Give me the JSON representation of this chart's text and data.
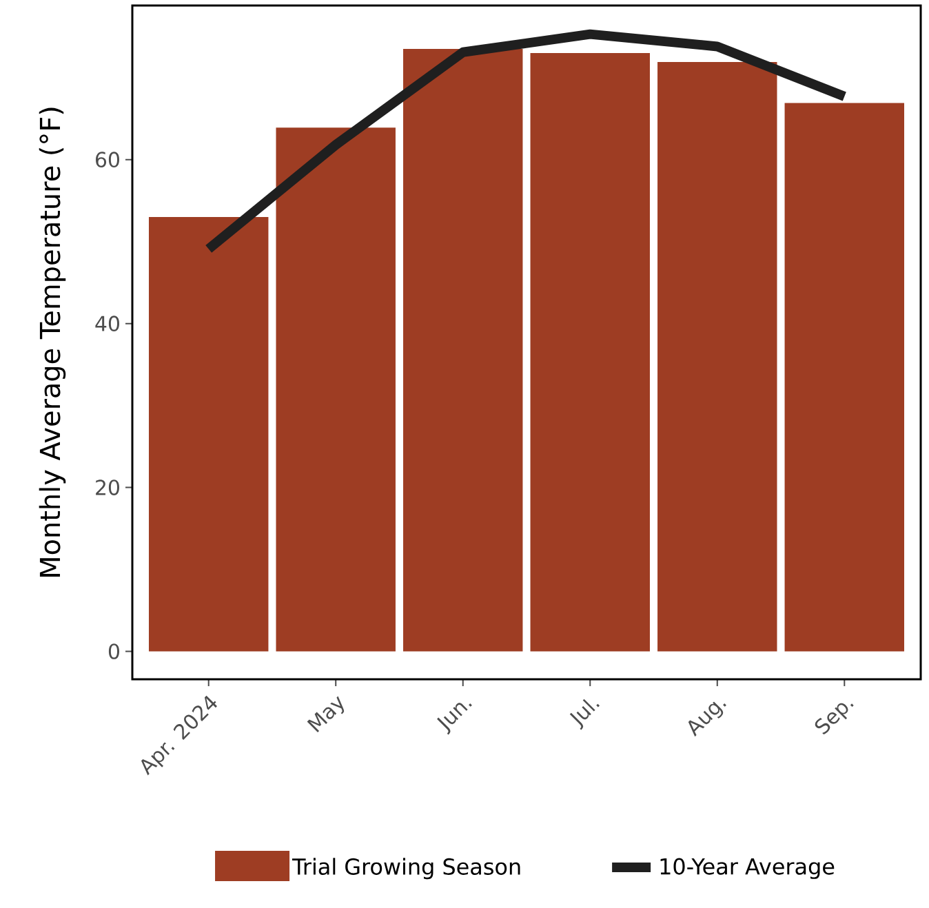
{
  "chart_data": {
    "type": "bar",
    "ylabel": "Monthly Average Temperature  (°F)",
    "categories": [
      "Apr. 2024",
      "May",
      "Jun.",
      "Jul.",
      "Aug.",
      "Sep."
    ],
    "series": [
      {
        "name": "Trial Growing Season",
        "color": "#9e3d23",
        "values": [
          53.0,
          63.9,
          73.5,
          73.0,
          71.9,
          66.9
        ]
      },
      {
        "name": "10-Year Average",
        "type": "line",
        "color": "#1f1f1f",
        "values": [
          49.1,
          61.8,
          73.1,
          75.3,
          73.8,
          67.7
        ]
      }
    ],
    "ylim": [
      -3.4,
      78.8
    ],
    "yticks": [
      0,
      20,
      40,
      60
    ],
    "legend": "bottom",
    "grid": false
  }
}
